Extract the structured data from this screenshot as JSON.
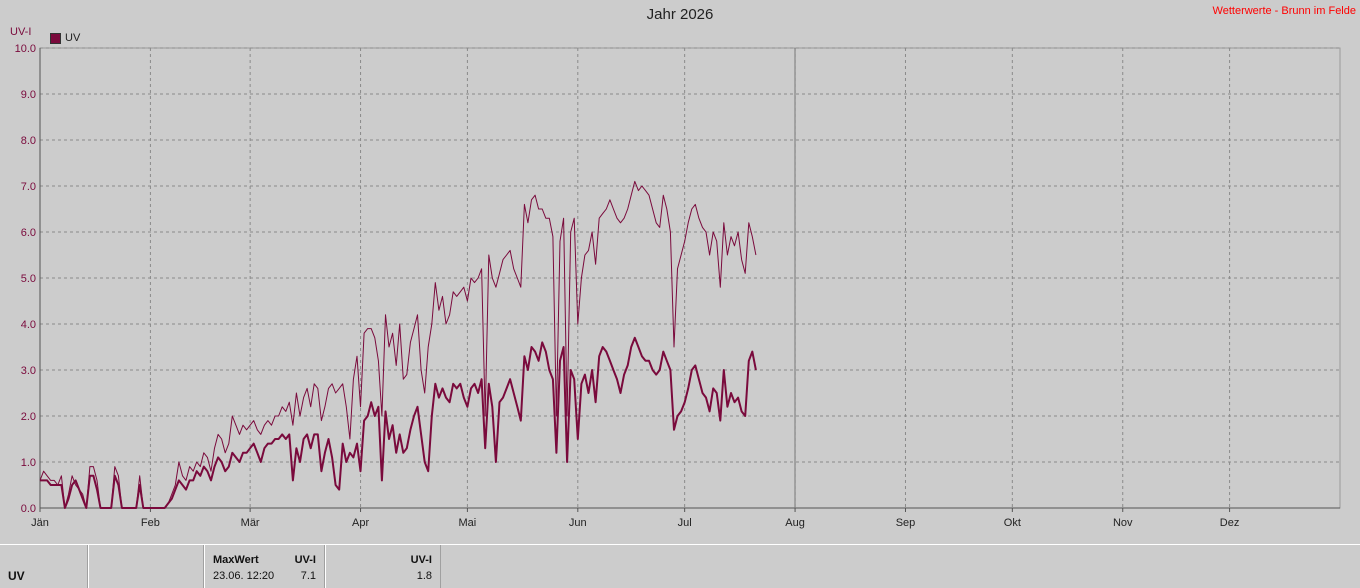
{
  "chart_data": {
    "type": "line",
    "title": "Jahr 2026",
    "source": "Wetterwerte - Brunn im Felde",
    "ylabel": "UV-I",
    "ylim": [
      0,
      10
    ],
    "yticks": [
      "0.0",
      "1.0",
      "2.0",
      "3.0",
      "4.0",
      "5.0",
      "6.0",
      "7.0",
      "8.0",
      "9.0",
      "10.0"
    ],
    "months": [
      "Jän",
      "Feb",
      "Mär",
      "Apr",
      "Mai",
      "Jun",
      "Jul",
      "Aug",
      "Sep",
      "Okt",
      "Nov",
      "Dez"
    ],
    "grid": true,
    "legend": "top-left",
    "series": [
      {
        "name": "UV",
        "color": "#7a0a3c",
        "width": 1,
        "values": [
          0.6,
          0.8,
          0.7,
          0.6,
          0.6,
          0.5,
          0.7,
          0.0,
          0.3,
          0.7,
          0.5,
          0.4,
          0.3,
          0.0,
          0.9,
          0.9,
          0.6,
          0.0,
          0.0,
          0.0,
          0.0,
          0.9,
          0.7,
          0.0,
          0.0,
          0.0,
          0.0,
          0.0,
          0.7,
          0.0,
          0.0,
          0.0,
          0.0,
          0.0,
          0.0,
          0.0,
          0.1,
          0.3,
          0.5,
          1.0,
          0.7,
          0.6,
          0.9,
          0.8,
          1.0,
          0.9,
          1.2,
          1.1,
          0.8,
          1.3,
          1.6,
          1.5,
          1.2,
          1.4,
          2.0,
          1.8,
          1.6,
          1.8,
          1.7,
          1.8,
          1.9,
          1.7,
          1.6,
          1.8,
          1.9,
          1.8,
          2.0,
          2.0,
          2.2,
          2.1,
          2.3,
          1.8,
          2.5,
          2.0,
          2.4,
          2.6,
          2.2,
          2.7,
          2.6,
          1.9,
          2.2,
          2.6,
          2.7,
          2.5,
          2.6,
          2.7,
          2.2,
          1.5,
          2.8,
          3.3,
          2.2,
          3.8,
          3.9,
          3.9,
          3.7,
          3.2,
          2.0,
          4.2,
          3.5,
          3.8,
          3.1,
          4.0,
          2.8,
          2.9,
          3.6,
          3.9,
          4.2,
          3.0,
          2.5,
          3.5,
          4.0,
          4.9,
          4.3,
          4.6,
          4.0,
          4.2,
          4.7,
          4.6,
          4.7,
          4.8,
          4.5,
          5.0,
          4.9,
          5.0,
          5.2,
          2.0,
          5.5,
          5.0,
          4.8,
          5.1,
          5.4,
          5.5,
          5.6,
          5.2,
          5.0,
          4.8,
          6.6,
          6.2,
          6.7,
          6.8,
          6.5,
          6.5,
          6.3,
          6.3,
          5.9,
          2.0,
          5.8,
          6.3,
          2.0,
          6.0,
          6.3,
          4.0,
          5.0,
          5.5,
          5.6,
          6.0,
          5.3,
          6.3,
          6.4,
          6.5,
          6.7,
          6.5,
          6.3,
          6.2,
          6.3,
          6.5,
          6.8,
          7.1,
          6.9,
          7.0,
          6.9,
          6.8,
          6.5,
          6.2,
          6.1,
          6.8,
          6.5,
          6.0,
          3.5,
          5.2,
          5.5,
          5.8,
          6.2,
          6.5,
          6.6,
          6.3,
          6.1,
          6.0,
          5.5,
          6.0,
          5.8,
          4.8,
          6.2,
          5.5,
          5.9,
          5.7,
          6.0,
          5.4,
          5.1,
          6.2,
          5.9,
          5.5
        ]
      },
      {
        "name": "UV",
        "color": "#7a0a3c",
        "width": 2,
        "values": [
          0.6,
          0.6,
          0.6,
          0.5,
          0.5,
          0.5,
          0.5,
          0.0,
          0.2,
          0.5,
          0.6,
          0.4,
          0.2,
          0.0,
          0.7,
          0.7,
          0.4,
          0.0,
          0.0,
          0.0,
          0.0,
          0.7,
          0.5,
          0.0,
          0.0,
          0.0,
          0.0,
          0.0,
          0.5,
          0.0,
          0.0,
          0.0,
          0.0,
          0.0,
          0.0,
          0.0,
          0.1,
          0.2,
          0.4,
          0.6,
          0.5,
          0.4,
          0.6,
          0.6,
          0.8,
          0.7,
          0.9,
          0.8,
          0.6,
          0.9,
          1.1,
          1.0,
          0.8,
          0.9,
          1.2,
          1.1,
          1.0,
          1.2,
          1.2,
          1.3,
          1.4,
          1.2,
          1.0,
          1.3,
          1.4,
          1.4,
          1.5,
          1.5,
          1.6,
          1.5,
          1.6,
          0.6,
          1.3,
          1.0,
          1.5,
          1.6,
          1.3,
          1.6,
          1.6,
          0.8,
          1.2,
          1.5,
          1.1,
          0.5,
          0.4,
          1.4,
          1.0,
          1.2,
          1.1,
          1.4,
          0.8,
          1.9,
          2.0,
          2.3,
          2.0,
          2.2,
          0.6,
          2.1,
          1.5,
          1.8,
          1.2,
          1.6,
          1.2,
          1.3,
          1.7,
          2.0,
          2.2,
          1.6,
          1.0,
          0.8,
          2.0,
          2.7,
          2.4,
          2.6,
          2.4,
          2.3,
          2.7,
          2.6,
          2.7,
          2.4,
          2.2,
          2.6,
          2.7,
          2.5,
          2.8,
          1.3,
          2.7,
          2.2,
          1.0,
          2.3,
          2.4,
          2.6,
          2.8,
          2.5,
          2.2,
          1.9,
          3.3,
          3.0,
          3.5,
          3.4,
          3.2,
          3.6,
          3.4,
          3.0,
          2.8,
          1.2,
          3.2,
          3.5,
          1.0,
          3.0,
          2.8,
          1.5,
          2.7,
          2.9,
          2.5,
          3.0,
          2.3,
          3.3,
          3.5,
          3.4,
          3.2,
          3.0,
          2.8,
          2.5,
          2.9,
          3.1,
          3.5,
          3.7,
          3.5,
          3.3,
          3.2,
          3.2,
          3.0,
          2.9,
          3.0,
          3.4,
          3.2,
          3.0,
          1.7,
          2.0,
          2.1,
          2.3,
          2.6,
          3.0,
          3.1,
          2.8,
          2.5,
          2.4,
          2.1,
          2.6,
          2.5,
          1.9,
          3.0,
          2.2,
          2.5,
          2.3,
          2.4,
          2.1,
          2.0,
          3.2,
          3.4,
          3.0
        ]
      }
    ]
  },
  "footer": {
    "row_label": "UV",
    "max_header": "MaxWert",
    "max_unit": "UV-I",
    "max_time": "23.06.  12:20",
    "max_value": "7.1",
    "avg_unit": "UV-I",
    "avg_value": "1.8"
  }
}
